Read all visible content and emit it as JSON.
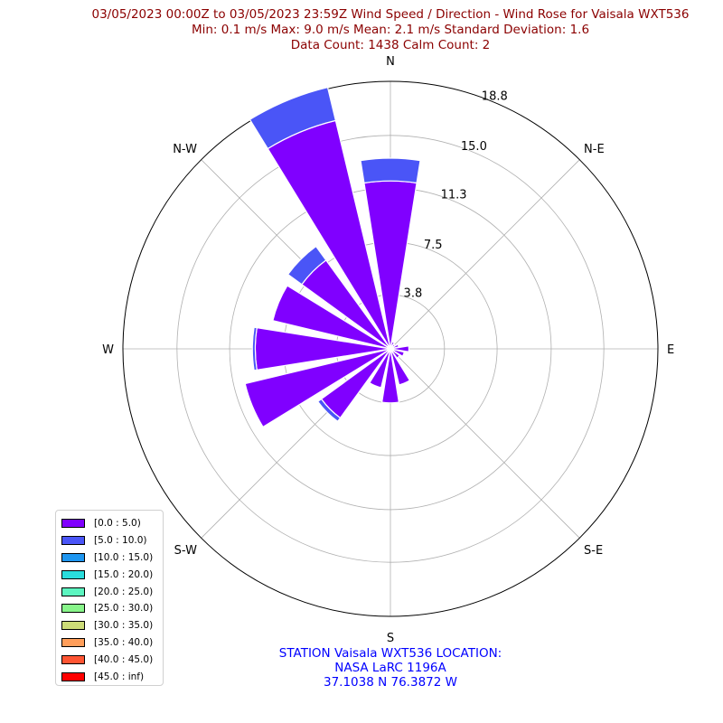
{
  "header": {
    "line1": "03/05/2023 00:00Z to 03/05/2023 23:59Z Wind Speed / Direction - Wind Rose for Vaisala WXT536",
    "line2": "Min: 0.1 m/s   Max: 9.0 m/s   Mean: 2.1 m/s  Standard Deviation: 1.6",
    "line3": "Data Count: 1438  Calm Count:  2"
  },
  "footer": {
    "line1": "STATION Vaisala WXT536 LOCATION:",
    "line2": "NASA LaRC 1196A",
    "line3": "37.1038 N 76.3872 W"
  },
  "chart_data": {
    "type": "wind-rose",
    "directions": [
      "N",
      "NNE",
      "NE",
      "ENE",
      "E",
      "ESE",
      "SE",
      "SSE",
      "S",
      "SSW",
      "SW",
      "WSW",
      "W",
      "WNW",
      "NW",
      "NNW"
    ],
    "direction_labels": [
      "N",
      "N-E",
      "E",
      "S-E",
      "S",
      "S-W",
      "W",
      "N-W"
    ],
    "radial_ticks": [
      3.8,
      7.5,
      11.3,
      15.0,
      18.8
    ],
    "radial_tick_labels": [
      "3.8",
      "7.5",
      "11.3",
      "15.0",
      "18.8"
    ],
    "rmax": 18.8,
    "series": [
      {
        "name": "[0.0 : 5.0)",
        "color": "#8000ff",
        "values": [
          11.8,
          0.5,
          0.4,
          0.6,
          1.3,
          1.0,
          0.8,
          2.6,
          3.8,
          2.8,
          6.0,
          10.5,
          9.5,
          8.5,
          7.7,
          16.5
        ]
      },
      {
        "name": "[5.0 : 10.0)",
        "color": "#4a55f7",
        "values": [
          1.6,
          0,
          0,
          0,
          0,
          0,
          0,
          0,
          0,
          0,
          0.3,
          0,
          0.2,
          0,
          1.2,
          2.4
        ]
      },
      {
        "name": "[10.0 : 15.0)",
        "color": "#1e96f0",
        "values": [
          0,
          0,
          0,
          0,
          0,
          0,
          0,
          0,
          0,
          0,
          0,
          0,
          0,
          0,
          0,
          0
        ]
      },
      {
        "name": "[15.0 : 20.0)",
        "color": "#2adddd",
        "values": [
          0,
          0,
          0,
          0,
          0,
          0,
          0,
          0,
          0,
          0,
          0,
          0,
          0,
          0,
          0,
          0
        ]
      },
      {
        "name": "[20.0 : 25.0)",
        "color": "#5cf5c0",
        "values": [
          0,
          0,
          0,
          0,
          0,
          0,
          0,
          0,
          0,
          0,
          0,
          0,
          0,
          0,
          0,
          0
        ]
      },
      {
        "name": "[25.0 : 30.0)",
        "color": "#88f58a",
        "values": [
          0,
          0,
          0,
          0,
          0,
          0,
          0,
          0,
          0,
          0,
          0,
          0,
          0,
          0,
          0,
          0
        ]
      },
      {
        "name": "[30.0 : 35.0)",
        "color": "#cddc78",
        "values": [
          0,
          0,
          0,
          0,
          0,
          0,
          0,
          0,
          0,
          0,
          0,
          0,
          0,
          0,
          0,
          0
        ]
      },
      {
        "name": "[35.0 : 40.0)",
        "color": "#ff9e5a",
        "values": [
          0,
          0,
          0,
          0,
          0,
          0,
          0,
          0,
          0,
          0,
          0,
          0,
          0,
          0,
          0,
          0
        ]
      },
      {
        "name": "[40.0 : 45.0)",
        "color": "#ff5533",
        "values": [
          0,
          0,
          0,
          0,
          0,
          0,
          0,
          0,
          0,
          0,
          0,
          0,
          0,
          0,
          0,
          0
        ]
      },
      {
        "name": "[45.0 : inf)",
        "color": "#ff0000",
        "values": [
          0,
          0,
          0,
          0,
          0,
          0,
          0,
          0,
          0,
          0,
          0,
          0,
          0,
          0,
          0,
          0
        ]
      }
    ],
    "legend_placement": "lower-left",
    "grid": true
  }
}
